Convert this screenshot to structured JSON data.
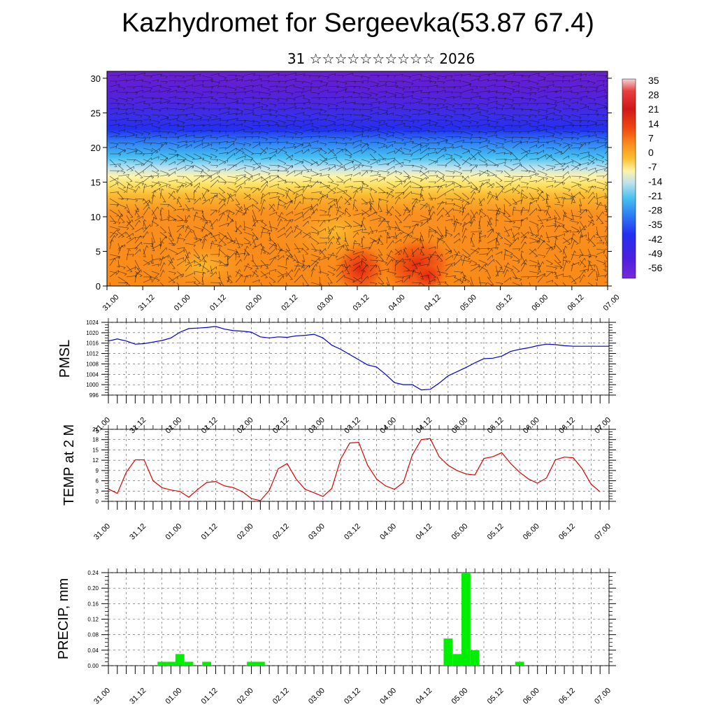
{
  "header": {
    "title": "Kazhydromet for Sergeevka(53.87 67.4)",
    "subtitle": "31 ☆☆☆☆☆☆☆☆☆☆ 2026"
  },
  "chart_data": [
    {
      "type": "heatmap",
      "title": "",
      "xlabel": "",
      "ylabel": "",
      "x_tick_labels": [
        "31.00",
        "31.12",
        "01.00",
        "01.12",
        "02.00",
        "02.12",
        "03.00",
        "03.12",
        "04.00",
        "04.12",
        "05.00",
        "05.12",
        "06.00",
        "06.12",
        "07.00"
      ],
      "ylim": [
        0,
        31
      ],
      "y_ticks": [
        0,
        5,
        10,
        15,
        20,
        25,
        30
      ],
      "colorbar_labels": [
        "35",
        "28",
        "21",
        "14",
        "7",
        "0",
        "-7",
        "-14",
        "-21",
        "-28",
        "-35",
        "-42",
        "-49",
        "-56"
      ],
      "overlay": "wind streamlines/barbs",
      "temperature_by_level": [
        {
          "level": 0,
          "value": 12
        },
        {
          "level": 5,
          "value": 10
        },
        {
          "level": 10,
          "value": 6
        },
        {
          "level": 14,
          "value": -10
        },
        {
          "level": 17,
          "value": -22
        },
        {
          "level": 20,
          "value": -40
        },
        {
          "level": 22,
          "value": -52
        },
        {
          "level": 25,
          "value": -48
        },
        {
          "level": 31,
          "value": -58
        }
      ],
      "grid": true
    },
    {
      "type": "line",
      "ylabel": "PMSL",
      "ylim": [
        996,
        1024
      ],
      "y_ticks": [
        996,
        1000,
        1004,
        1008,
        1012,
        1016,
        1020,
        1024
      ],
      "x_tick_labels": [
        "31.00",
        "31.12",
        "01.00",
        "01.12",
        "02.00",
        "02.12",
        "03.00",
        "03.12",
        "04.00",
        "04.12",
        "05.00",
        "05.12",
        "06.00",
        "06.12",
        "07.00"
      ],
      "color": "#0000cc",
      "grid": true,
      "series": [
        {
          "x": [
            0,
            3,
            6,
            9,
            12,
            15,
            18,
            21,
            24,
            27,
            30,
            33,
            36,
            39,
            42,
            45,
            48,
            51,
            54,
            57,
            60,
            63,
            66,
            69,
            72,
            75,
            78,
            81,
            84,
            87,
            90,
            93,
            96,
            99,
            102,
            105,
            108,
            111,
            114,
            117,
            120,
            123,
            126,
            129,
            132,
            135,
            138,
            141,
            144,
            147,
            150,
            153,
            156,
            159,
            162,
            165,
            168
          ],
          "values": [
            1016.8,
            1017.6,
            1016.8,
            1015.6,
            1015.8,
            1016.4,
            1017.0,
            1018.0,
            1020.2,
            1021.6,
            1021.8,
            1022.0,
            1022.4,
            1021.4,
            1020.8,
            1020.6,
            1020.2,
            1018.4,
            1018.0,
            1018.4,
            1018.2,
            1018.8,
            1019.0,
            1019.4,
            1018.0,
            1015.2,
            1013.6,
            1011.6,
            1009.6,
            1007.6,
            1006.8,
            1004.0,
            1000.8,
            1000.0,
            1000.0,
            998.0,
            998.2,
            1000.6,
            1003.4,
            1005.0,
            1006.6,
            1008.4,
            1010.0,
            1010.2,
            1011.0,
            1012.8,
            1013.6,
            1014.2,
            1015.0,
            1015.6,
            1015.4,
            1015.0,
            1014.8,
            1014.8,
            1014.8,
            1014.8,
            1014.8
          ]
        }
      ]
    },
    {
      "type": "line",
      "ylabel": "TEMP at 2 M",
      "ylim": [
        0,
        21
      ],
      "y_ticks": [
        0,
        3,
        6,
        9,
        12,
        15,
        18,
        21
      ],
      "x_tick_labels": [
        "31.00",
        "31.12",
        "01.00",
        "01.12",
        "02.00",
        "02.12",
        "03.00",
        "03.12",
        "04.00",
        "04.12",
        "05.00",
        "05.12",
        "06.00",
        "06.12",
        "07.00"
      ],
      "color": "#dd0000",
      "grid": true,
      "series": [
        {
          "x": [
            0,
            3,
            6,
            9,
            12,
            15,
            18,
            21,
            24,
            27,
            30,
            33,
            36,
            39,
            42,
            45,
            48,
            51,
            54,
            57,
            60,
            63,
            66,
            69,
            72,
            75,
            78,
            81,
            84,
            87,
            90,
            93,
            96,
            99,
            102,
            105,
            108,
            111,
            114,
            117,
            120,
            123,
            126,
            129,
            132,
            135,
            138,
            141,
            144,
            147,
            150,
            153,
            156,
            159,
            162,
            165
          ],
          "values": [
            3.6,
            2.3,
            8.5,
            12.1,
            12.1,
            6.0,
            4.0,
            3.3,
            2.9,
            1.2,
            3.5,
            5.5,
            5.8,
            4.5,
            4.0,
            2.8,
            0.8,
            0.2,
            3.2,
            9.5,
            11.0,
            6.5,
            3.5,
            2.5,
            1.4,
            3.8,
            12.4,
            17.0,
            17.2,
            10.5,
            6.5,
            4.5,
            3.5,
            5.5,
            13.5,
            18.0,
            18.3,
            13.0,
            10.5,
            9.0,
            8.0,
            7.7,
            12.5,
            13.0,
            14.2,
            11.0,
            8.5,
            6.5,
            5.3,
            6.8,
            12.1,
            12.9,
            12.7,
            9.5,
            5.0,
            2.8
          ]
        }
      ]
    },
    {
      "type": "bar",
      "ylabel": "PRECIP, mm",
      "ylim": [
        0,
        0.24
      ],
      "y_ticks": [
        "0.00",
        "0.04",
        "0.08",
        "0.12",
        "0.16",
        "0.20",
        "0.24"
      ],
      "x_tick_labels": [
        "31.00",
        "31.12",
        "01.00",
        "01.12",
        "02.00",
        "02.12",
        "03.00",
        "03.12",
        "04.00",
        "04.12",
        "05.00",
        "05.12",
        "06.00",
        "06.12",
        "07.00"
      ],
      "color": "#00ee00",
      "grid": true,
      "bars": [
        {
          "x": 18,
          "value": 0.01
        },
        {
          "x": 21,
          "value": 0.01
        },
        {
          "x": 24,
          "value": 0.03
        },
        {
          "x": 27,
          "value": 0.01
        },
        {
          "x": 33,
          "value": 0.01
        },
        {
          "x": 48,
          "value": 0.01
        },
        {
          "x": 51,
          "value": 0.01
        },
        {
          "x": 114,
          "value": 0.07
        },
        {
          "x": 117,
          "value": 0.03
        },
        {
          "x": 120,
          "value": 0.24
        },
        {
          "x": 123,
          "value": 0.04
        },
        {
          "x": 138,
          "value": 0.01
        }
      ]
    }
  ],
  "colors": {
    "pmsl_line": "#0000cc",
    "temp_line": "#dd0000",
    "precip_bar": "#00ee00"
  }
}
